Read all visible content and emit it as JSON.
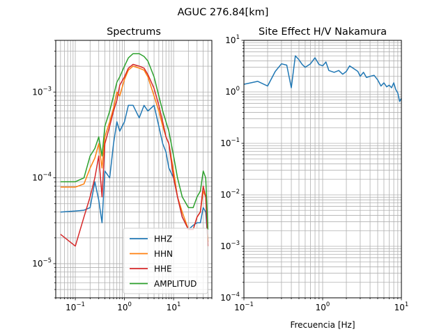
{
  "suptitle": "AGUC 276.84[km]",
  "chart_data": [
    {
      "type": "line",
      "title": "Spectrums",
      "xlabel": "",
      "ylabel": "",
      "xscale": "log",
      "yscale": "log",
      "xlim": [
        0.04,
        60
      ],
      "ylim": [
        4e-06,
        0.004
      ],
      "xticks": [
        {
          "value": 0.1,
          "base": "10",
          "exp": "−1"
        },
        {
          "value": 1,
          "base": "10",
          "exp": "0"
        },
        {
          "value": 10,
          "base": "10",
          "exp": "1"
        }
      ],
      "yticks": [
        {
          "value": 1e-05,
          "base": "10",
          "exp": "−5"
        },
        {
          "value": 0.0001,
          "base": "10",
          "exp": "−4"
        },
        {
          "value": 0.001,
          "base": "10",
          "exp": "−3"
        }
      ],
      "grid": "both (major and minor)",
      "legend": "lower right",
      "series": [
        {
          "name": "HHZ",
          "color": "#1f77b4",
          "x": [
            0.05,
            0.1,
            0.15,
            0.2,
            0.25,
            0.3,
            0.35,
            0.4,
            0.5,
            0.6,
            0.7,
            0.8,
            1.0,
            1.2,
            1.5,
            2.0,
            2.5,
            3.0,
            4.0,
            5.0,
            6.0,
            7.0,
            8.0,
            10,
            12,
            15,
            20,
            25,
            30,
            35,
            40,
            45,
            50
          ],
          "y": [
            4e-05,
            4.1e-05,
            4.2e-05,
            4.5e-05,
            9e-05,
            5.5e-05,
            3e-05,
            0.00012,
            0.0001,
            0.00025,
            0.00045,
            0.00035,
            0.00045,
            0.0007,
            0.0007,
            0.0005,
            0.0007,
            0.0006,
            0.0007,
            0.0004,
            0.00025,
            0.0002,
            0.00013,
            0.0001,
            6e-05,
            3.5e-05,
            2.5e-05,
            2.8e-05,
            3e-05,
            3e-05,
            4.5e-05,
            4e-05,
            1.8e-05
          ]
        },
        {
          "name": "HHN",
          "color": "#ff7f0e",
          "x": [
            0.05,
            0.1,
            0.15,
            0.2,
            0.25,
            0.3,
            0.35,
            0.4,
            0.5,
            0.6,
            0.7,
            0.8,
            1.0,
            1.2,
            1.5,
            2.0,
            2.5,
            3.0,
            4.0,
            5.0,
            6.0,
            7.0,
            8.0,
            10,
            12,
            15,
            20,
            25,
            30,
            35,
            40,
            45,
            50
          ],
          "y": [
            7.8e-05,
            7.8e-05,
            8.5e-05,
            0.00013,
            0.00017,
            0.00025,
            0.00013,
            0.0003,
            0.00045,
            0.00065,
            0.001,
            0.0009,
            0.0014,
            0.0018,
            0.002,
            0.0019,
            0.0018,
            0.0015,
            0.0009,
            0.0006,
            0.0004,
            0.0003,
            0.00025,
            0.00012,
            6e-05,
            4e-05,
            2.5e-05,
            2.5e-05,
            3.5e-05,
            4e-05,
            7e-05,
            6e-05,
            1.8e-05
          ]
        },
        {
          "name": "HHE",
          "color": "#d62728",
          "x": [
            0.05,
            0.1,
            0.15,
            0.2,
            0.25,
            0.3,
            0.35,
            0.4,
            0.5,
            0.6,
            0.7,
            0.8,
            1.0,
            1.2,
            1.5,
            2.0,
            2.5,
            3.0,
            4.0,
            5.0,
            6.0,
            7.0,
            8.0,
            10,
            12,
            15,
            20,
            25,
            30,
            35,
            40,
            45,
            50
          ],
          "y": [
            2.2e-05,
            1.6e-05,
            3.5e-05,
            6e-05,
            0.0001,
            0.00018,
            6e-05,
            0.00025,
            0.0004,
            0.0006,
            0.0008,
            0.0012,
            0.0015,
            0.0019,
            0.0021,
            0.002,
            0.0019,
            0.0016,
            0.0011,
            0.0007,
            0.00045,
            0.0003,
            0.00025,
            0.0001,
            6e-05,
            3.5e-05,
            2.5e-05,
            2.5e-05,
            3.5e-05,
            4e-05,
            8e-05,
            6e-05,
            1.6e-05
          ]
        },
        {
          "name": "AMPLITUD",
          "color": "#2ca02c",
          "x": [
            0.05,
            0.1,
            0.15,
            0.2,
            0.25,
            0.3,
            0.35,
            0.4,
            0.5,
            0.6,
            0.7,
            0.8,
            1.0,
            1.2,
            1.5,
            2.0,
            2.5,
            3.0,
            4.0,
            5.0,
            6.0,
            7.0,
            8.0,
            10,
            12,
            15,
            20,
            25,
            30,
            35,
            40,
            45,
            50
          ],
          "y": [
            9e-05,
            9e-05,
            0.0001,
            0.00018,
            0.00022,
            0.0003,
            0.00018,
            0.0004,
            0.0006,
            0.0009,
            0.0013,
            0.0015,
            0.002,
            0.0025,
            0.0028,
            0.0028,
            0.0026,
            0.0023,
            0.0015,
            0.0009,
            0.0006,
            0.00045,
            0.00035,
            0.00018,
            0.0001,
            6e-05,
            4.5e-05,
            4.5e-05,
            6e-05,
            7e-05,
            0.00012,
            0.0001,
            2.5e-05
          ]
        }
      ]
    },
    {
      "type": "line",
      "title": "Site Effect H/V Nakamura",
      "xlabel": "Frecuencia [Hz]",
      "ylabel": "",
      "xscale": "log",
      "yscale": "log",
      "xlim": [
        0.1,
        10
      ],
      "ylim": [
        0.0001,
        10
      ],
      "xticks": [
        {
          "value": 0.1,
          "base": "10",
          "exp": "−1"
        },
        {
          "value": 1,
          "base": "10",
          "exp": "0"
        },
        {
          "value": 10,
          "base": "10",
          "exp": "1"
        }
      ],
      "yticks": [
        {
          "value": 0.0001,
          "base": "10",
          "exp": "−4"
        },
        {
          "value": 0.001,
          "base": "10",
          "exp": "−3"
        },
        {
          "value": 0.01,
          "base": "10",
          "exp": "−2"
        },
        {
          "value": 0.1,
          "base": "10",
          "exp": "−1"
        },
        {
          "value": 1,
          "base": "10",
          "exp": "0"
        },
        {
          "value": 10,
          "base": "10",
          "exp": "1"
        }
      ],
      "grid": "both (major and minor)",
      "series": [
        {
          "color": "#1f77b4",
          "x": [
            0.1,
            0.15,
            0.2,
            0.25,
            0.3,
            0.35,
            0.4,
            0.45,
            0.5,
            0.55,
            0.6,
            0.7,
            0.8,
            0.9,
            1.0,
            1.1,
            1.2,
            1.4,
            1.6,
            1.8,
            2.0,
            2.2,
            2.5,
            2.8,
            3.0,
            3.3,
            3.6,
            4.0,
            4.5,
            5.0,
            5.5,
            6.0,
            6.5,
            7.0,
            7.5,
            8.0,
            8.5,
            9.0,
            9.5,
            10
          ],
          "y": [
            1.4,
            1.6,
            1.3,
            2.5,
            3.5,
            3.3,
            1.2,
            5.0,
            4.2,
            3.4,
            3.0,
            3.5,
            4.6,
            3.4,
            3.2,
            3.8,
            2.6,
            2.4,
            2.6,
            2.2,
            2.5,
            3.2,
            2.8,
            2.5,
            2.0,
            2.4,
            1.9,
            2.0,
            2.1,
            1.7,
            1.3,
            1.5,
            1.25,
            1.35,
            1.2,
            1.5,
            1.1,
            0.95,
            0.65,
            0.75
          ]
        }
      ]
    }
  ]
}
